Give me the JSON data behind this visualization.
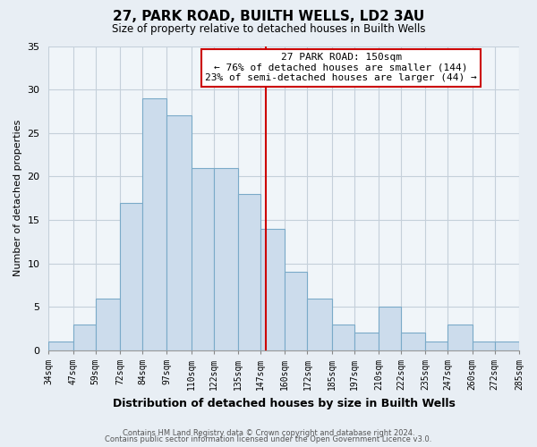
{
  "title": "27, PARK ROAD, BUILTH WELLS, LD2 3AU",
  "subtitle": "Size of property relative to detached houses in Builth Wells",
  "xlabel": "Distribution of detached houses by size in Builth Wells",
  "ylabel": "Number of detached properties",
  "footer_line1": "Contains HM Land Registry data © Crown copyright and database right 2024.",
  "footer_line2": "Contains public sector information licensed under the Open Government Licence v3.0.",
  "bins": [
    34,
    47,
    59,
    72,
    84,
    97,
    110,
    122,
    135,
    147,
    160,
    172,
    185,
    197,
    210,
    222,
    235,
    247,
    260,
    272,
    285
  ],
  "counts": [
    1,
    3,
    6,
    17,
    29,
    27,
    21,
    21,
    18,
    14,
    9,
    6,
    3,
    2,
    5,
    2,
    1,
    3,
    1,
    1
  ],
  "bar_color": "#ccdcec",
  "bar_edgecolor": "#7aaac8",
  "property_line_x": 150,
  "property_line_color": "#cc0000",
  "annotation_title": "27 PARK ROAD: 150sqm",
  "annotation_line1": "← 76% of detached houses are smaller (144)",
  "annotation_line2": "23% of semi-detached houses are larger (44) →",
  "annotation_box_facecolor": "#ffffff",
  "annotation_box_edgecolor": "#cc0000",
  "xlim_left": 34,
  "xlim_right": 285,
  "ylim_top": 35,
  "tick_labels": [
    "34sqm",
    "47sqm",
    "59sqm",
    "72sqm",
    "84sqm",
    "97sqm",
    "110sqm",
    "122sqm",
    "135sqm",
    "147sqm",
    "160sqm",
    "172sqm",
    "185sqm",
    "197sqm",
    "210sqm",
    "222sqm",
    "235sqm",
    "247sqm",
    "260sqm",
    "272sqm",
    "285sqm"
  ],
  "yticks": [
    0,
    5,
    10,
    15,
    20,
    25,
    30,
    35
  ],
  "background_color": "#e8eef4",
  "plot_background_color": "#f0f5f9",
  "grid_color": "#c5d0da"
}
